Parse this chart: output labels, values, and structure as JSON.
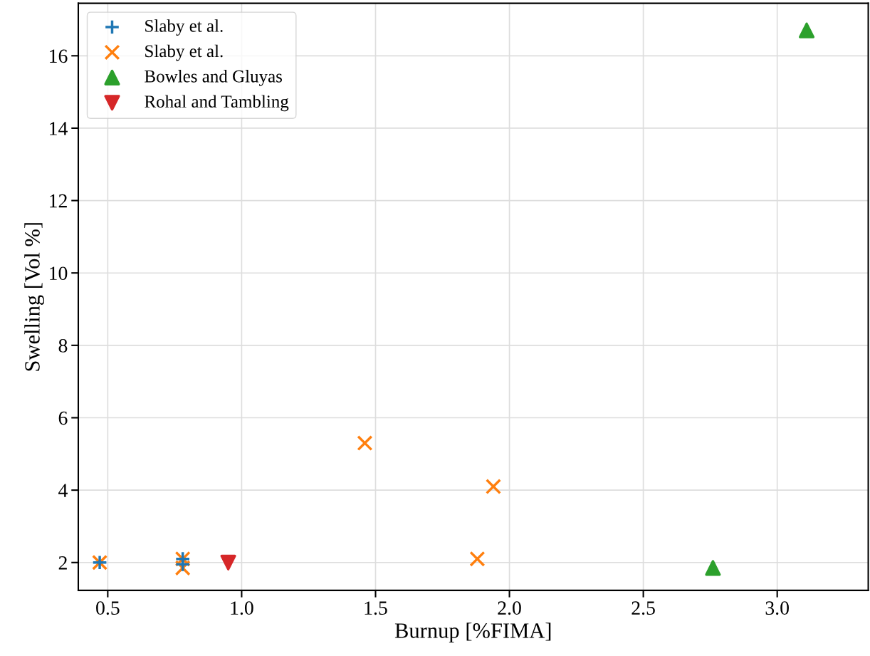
{
  "chart_data": {
    "type": "scatter",
    "xlabel": "Burnup [%FIMA]",
    "ylabel": "Swelling [Vol %]",
    "xlim": [
      0.39,
      3.34
    ],
    "ylim": [
      1.23,
      17.45
    ],
    "xticks": [
      {
        "value": 0.5,
        "label": "0.5"
      },
      {
        "value": 1.0,
        "label": "1.0"
      },
      {
        "value": 1.5,
        "label": "1.5"
      },
      {
        "value": 2.0,
        "label": "2.0"
      },
      {
        "value": 2.5,
        "label": "2.5"
      },
      {
        "value": 3.0,
        "label": "3.0"
      }
    ],
    "yticks": [
      2,
      4,
      6,
      8,
      10,
      12,
      14,
      16
    ],
    "grid": true,
    "legend": "top left",
    "series": [
      {
        "name": "Slaby et al.",
        "color": "#1f77b4",
        "marker": "plus",
        "x": [
          0.47,
          0.78,
          0.78
        ],
        "values": [
          2.0,
          2.1,
          1.95
        ]
      },
      {
        "name": "Slaby et al.",
        "color": "#ff7f0e",
        "marker": "cross",
        "x": [
          0.47,
          0.78,
          0.78,
          1.46,
          1.94,
          1.88
        ],
        "values": [
          2.0,
          2.1,
          1.85,
          5.3,
          4.1,
          2.1
        ]
      },
      {
        "name": "Bowles and Gluyas",
        "color": "#2ca02c",
        "marker": "triangle",
        "x": [
          2.76,
          3.11
        ],
        "values": [
          1.85,
          16.7
        ]
      },
      {
        "name": "Rohal and Tambling",
        "color": "#d62728",
        "marker": "triangle_down",
        "x": [
          0.95
        ],
        "values": [
          2.0
        ]
      }
    ]
  }
}
